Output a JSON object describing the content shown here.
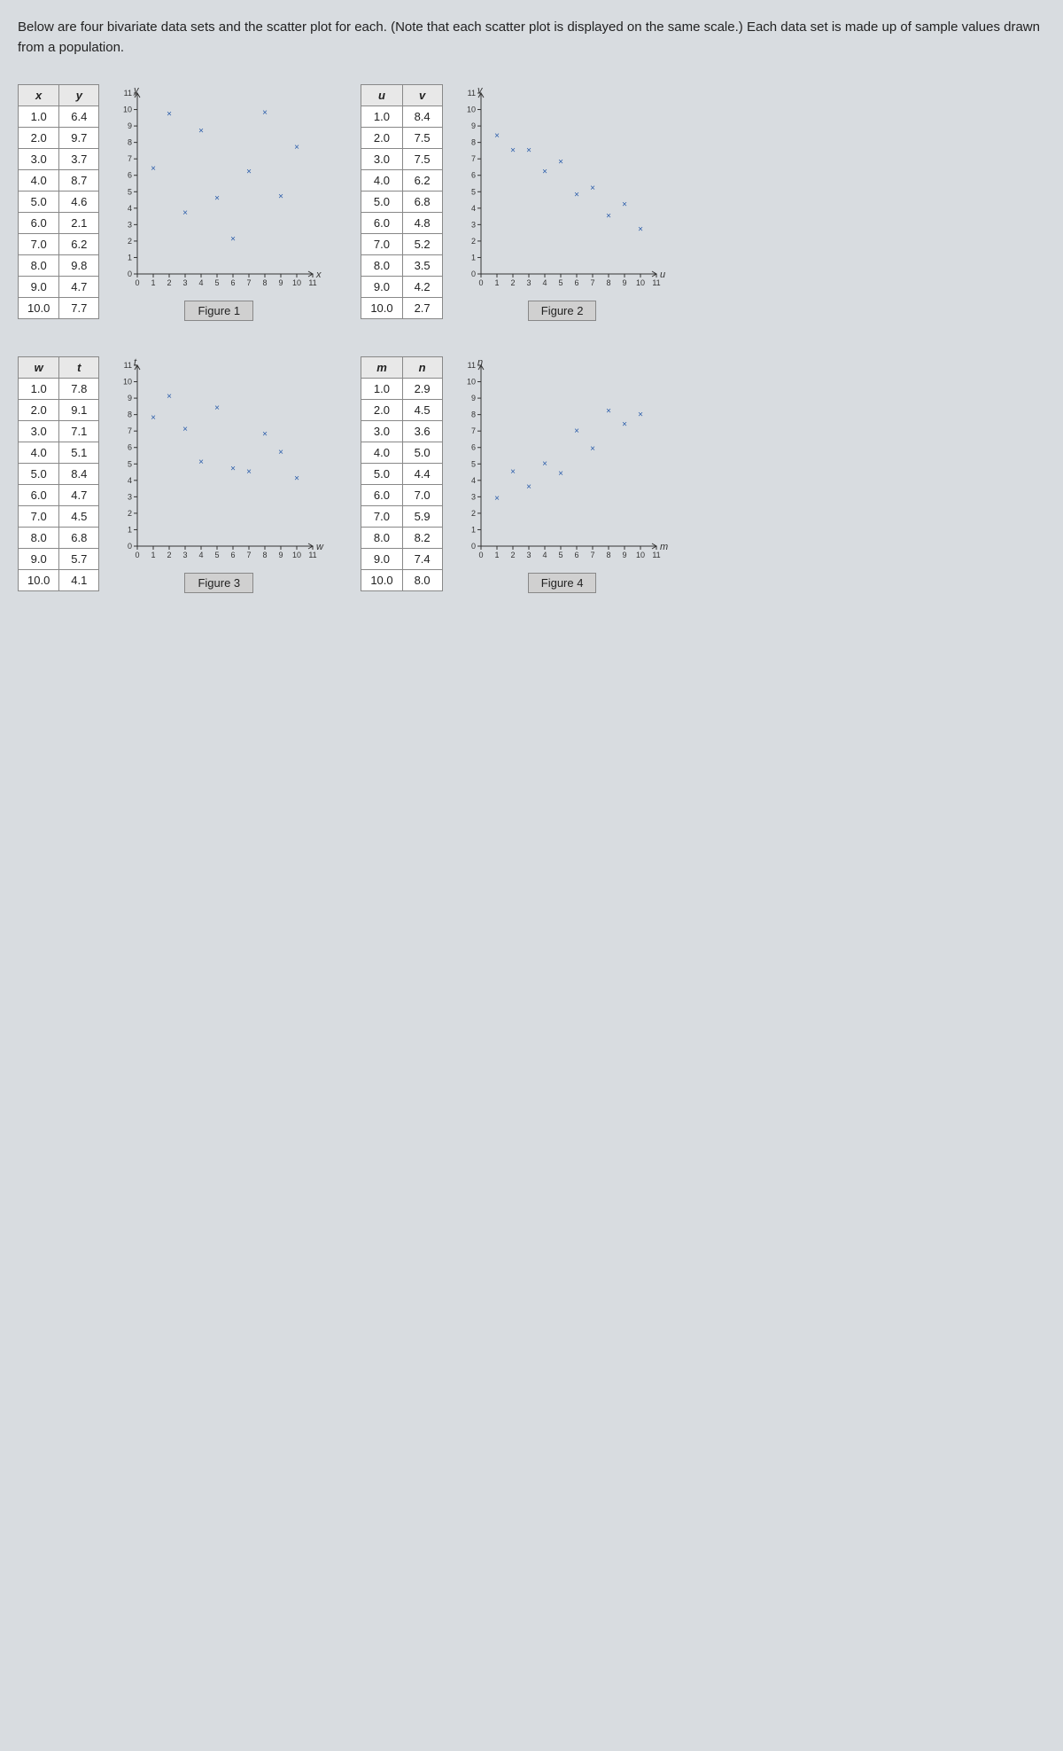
{
  "intro": "Below are four bivariate data sets and the scatter plot for each. (Note that each scatter plot is displayed on the same scale.) Each data set is made up of sample values drawn from a population.",
  "chart_common": {
    "xlim": [
      0,
      11
    ],
    "ylim": [
      0,
      11
    ],
    "xtick_step": 1,
    "ytick_step": 1,
    "marker_color": "#2a5caa",
    "background": "#ffffff",
    "axis_color": "#333333",
    "tick_fontsize": 9
  },
  "datasets": [
    {
      "id": "fig1",
      "cols": [
        "x",
        "y"
      ],
      "x_axis_label": "x",
      "y_axis_label": "y",
      "caption": "Figure 1",
      "rows": [
        [
          1.0,
          6.4
        ],
        [
          2.0,
          9.7
        ],
        [
          3.0,
          3.7
        ],
        [
          4.0,
          8.7
        ],
        [
          5.0,
          4.6
        ],
        [
          6.0,
          2.1
        ],
        [
          7.0,
          6.2
        ],
        [
          8.0,
          9.8
        ],
        [
          9.0,
          4.7
        ],
        [
          10.0,
          7.7
        ]
      ]
    },
    {
      "id": "fig2",
      "cols": [
        "u",
        "v"
      ],
      "x_axis_label": "u",
      "y_axis_label": "v",
      "caption": "Figure 2",
      "rows": [
        [
          1.0,
          8.4
        ],
        [
          2.0,
          7.5
        ],
        [
          3.0,
          7.5
        ],
        [
          4.0,
          6.2
        ],
        [
          5.0,
          6.8
        ],
        [
          6.0,
          4.8
        ],
        [
          7.0,
          5.2
        ],
        [
          8.0,
          3.5
        ],
        [
          9.0,
          4.2
        ],
        [
          10.0,
          2.7
        ]
      ]
    },
    {
      "id": "fig3",
      "cols": [
        "w",
        "t"
      ],
      "x_axis_label": "w",
      "y_axis_label": "t",
      "caption": "Figure 3",
      "rows": [
        [
          1.0,
          7.8
        ],
        [
          2.0,
          9.1
        ],
        [
          3.0,
          7.1
        ],
        [
          4.0,
          5.1
        ],
        [
          5.0,
          8.4
        ],
        [
          6.0,
          4.7
        ],
        [
          7.0,
          4.5
        ],
        [
          8.0,
          6.8
        ],
        [
          9.0,
          5.7
        ],
        [
          10.0,
          4.1
        ]
      ]
    },
    {
      "id": "fig4",
      "cols": [
        "m",
        "n"
      ],
      "x_axis_label": "m",
      "y_axis_label": "n",
      "caption": "Figure 4",
      "rows": [
        [
          1.0,
          2.9
        ],
        [
          2.0,
          4.5
        ],
        [
          3.0,
          3.6
        ],
        [
          4.0,
          5.0
        ],
        [
          5.0,
          4.4
        ],
        [
          6.0,
          7.0
        ],
        [
          7.0,
          5.9
        ],
        [
          8.0,
          8.2
        ],
        [
          9.0,
          7.4
        ],
        [
          10.0,
          8.0
        ]
      ]
    }
  ]
}
